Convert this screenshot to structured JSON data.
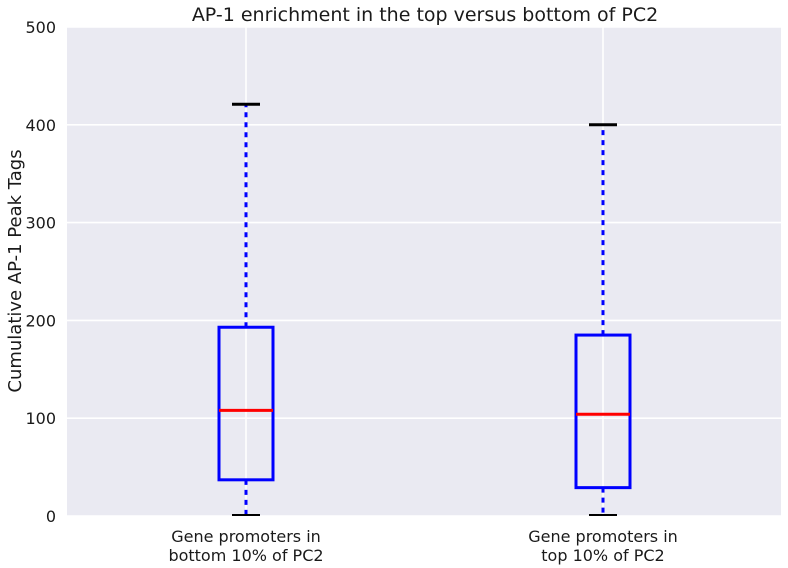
{
  "chart_data": {
    "type": "box",
    "title": "AP-1 enrichment in the top versus bottom of PC2",
    "xlabel": "",
    "ylabel": "Cumulative AP-1 Peak Tags",
    "ylim": [
      0,
      500
    ],
    "yticks": [
      "0",
      "100",
      "200",
      "300",
      "400",
      "500"
    ],
    "grid": true,
    "categories": [
      [
        "Gene promoters in",
        "bottom 10% of PC2"
      ],
      [
        "Gene promoters in",
        "top 10% of PC2"
      ]
    ],
    "boxes": [
      {
        "whisker_low": 0,
        "q1": 37,
        "median": 108,
        "q3": 193,
        "whisker_high": 421
      },
      {
        "whisker_low": 0,
        "q1": 29,
        "median": 104,
        "q3": 185,
        "whisker_high": 400
      }
    ]
  },
  "colors": {
    "plot_background": "#eaeaf2",
    "grid": "#ffffff",
    "box": "#0000ff",
    "median": "#ff0000",
    "cap": "#000000"
  }
}
